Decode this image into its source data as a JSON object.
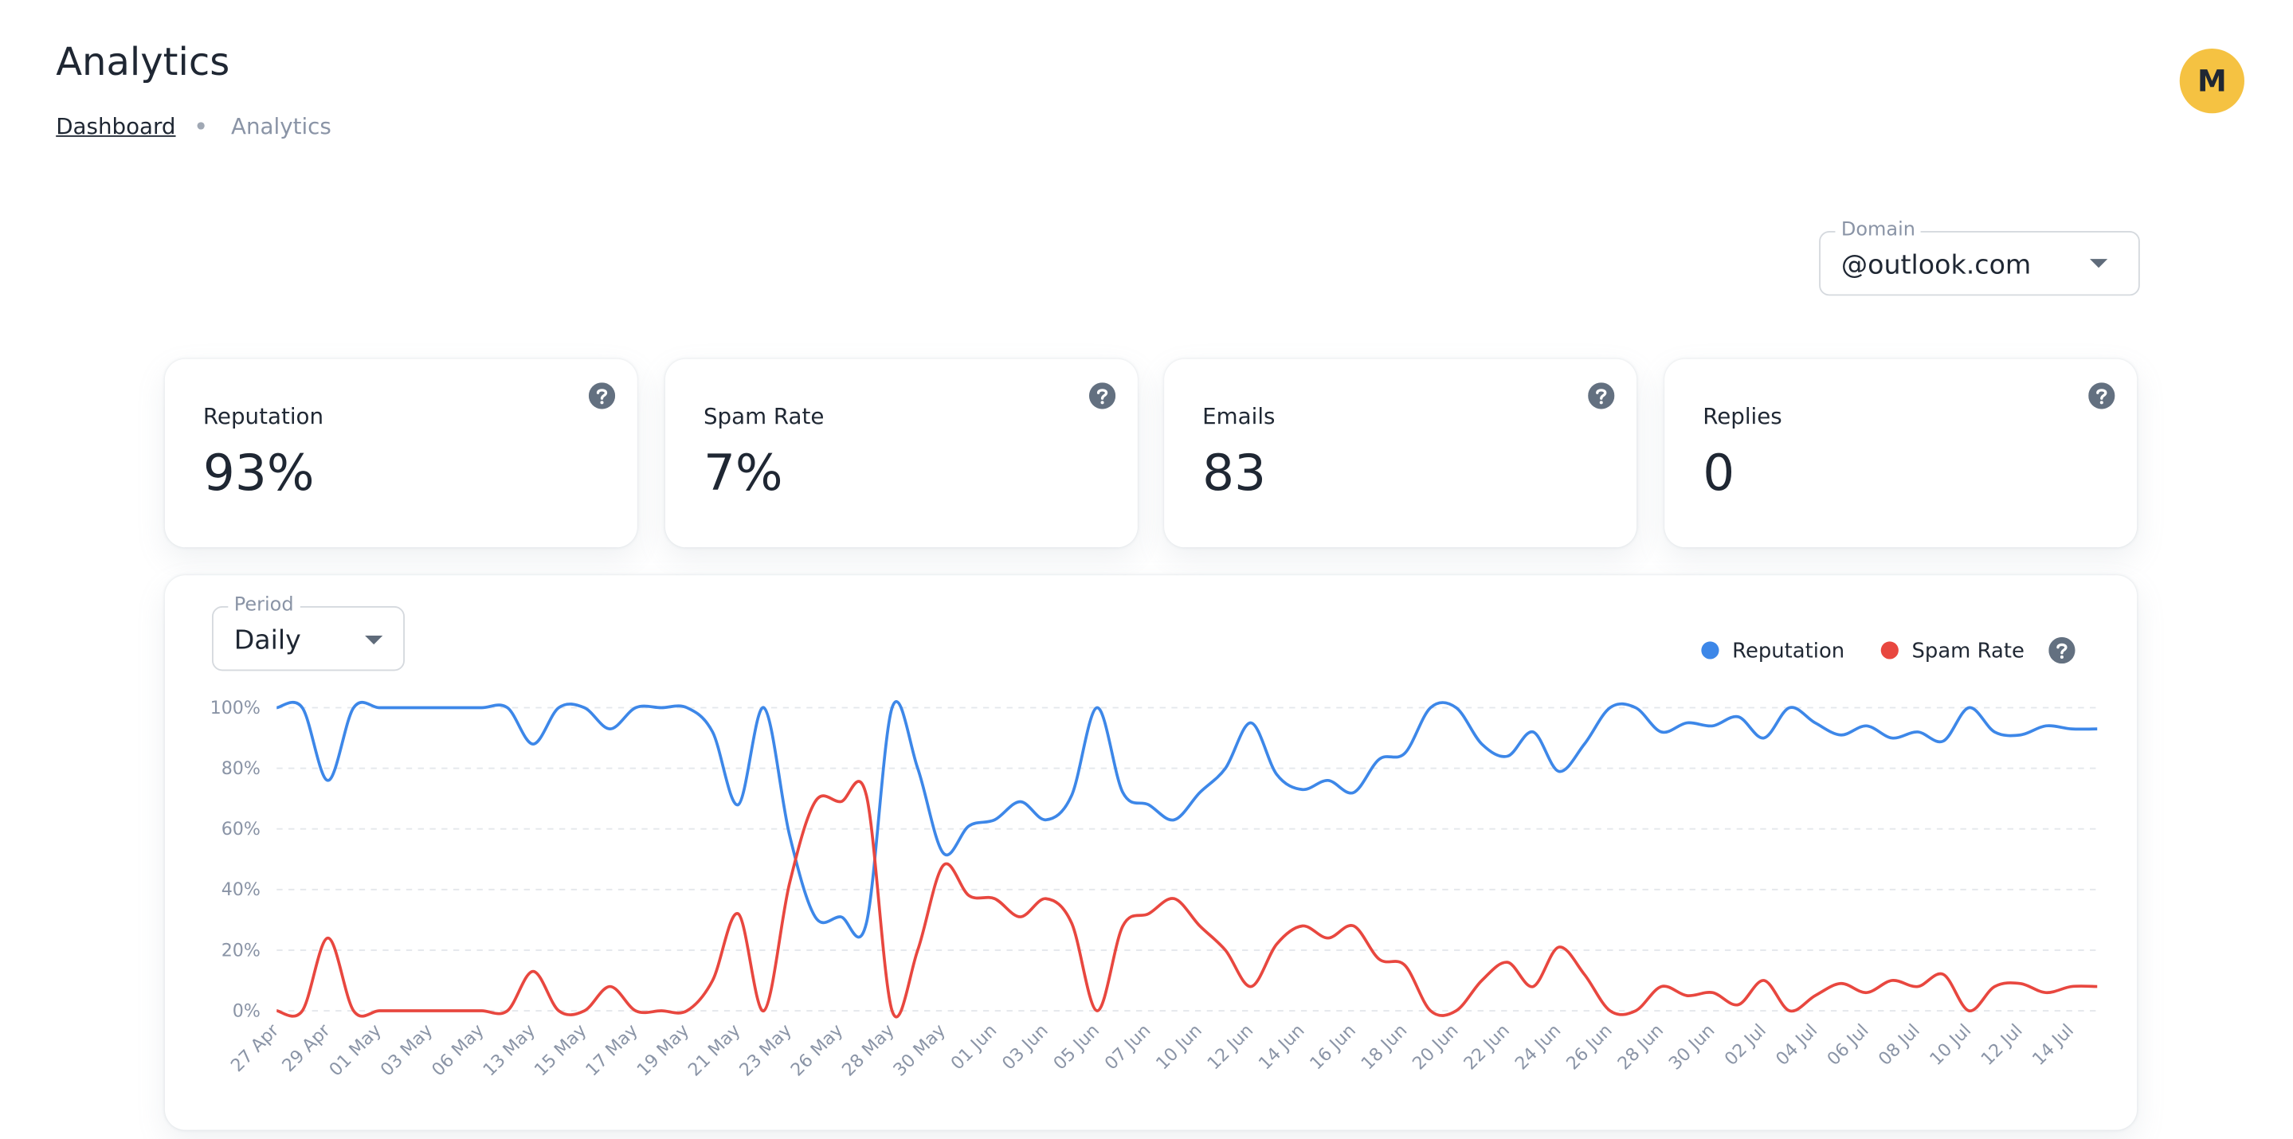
{
  "header": {
    "title": "Analytics",
    "avatar": "M",
    "breadcrumb": [
      "Dashboard",
      "Analytics"
    ]
  },
  "domain_select": {
    "label": "Domain",
    "value": "@outlook.com"
  },
  "stats": [
    {
      "label": "Reputation",
      "value": "93%"
    },
    {
      "label": "Spam Rate",
      "value": "7%"
    },
    {
      "label": "Emails",
      "value": "83"
    },
    {
      "label": "Replies",
      "value": "0"
    }
  ],
  "period_select": {
    "label": "Period",
    "value": "Daily"
  },
  "chart_data": {
    "type": "line",
    "categories": [
      "27 Apr",
      null,
      "29 Apr",
      null,
      "01 May",
      null,
      "03 May",
      null,
      "06 May",
      null,
      "13 May",
      null,
      "15 May",
      null,
      "17 May",
      null,
      "19 May",
      null,
      "21 May",
      null,
      "23 May",
      null,
      "26 May",
      null,
      "28 May",
      null,
      "30 May",
      null,
      "01 Jun",
      null,
      "03 Jun",
      null,
      "05 Jun",
      null,
      "07 Jun",
      null,
      "10 Jun",
      null,
      "12 Jun",
      null,
      "14 Jun",
      null,
      "16 Jun",
      null,
      "18 Jun",
      null,
      "20 Jun",
      null,
      "22 Jun",
      null,
      "24 Jun",
      null,
      "26 Jun",
      null,
      "28 Jun",
      null,
      "30 Jun",
      null,
      "02 Jul",
      null,
      "04 Jul",
      null,
      "06 Jul",
      null,
      "08 Jul",
      null,
      "10 Jul",
      null,
      "12 Jul",
      null,
      "14 Jul",
      null
    ],
    "series": [
      {
        "name": "Reputation",
        "color": "#3d87e8",
        "values": [
          100,
          100,
          76,
          100,
          100,
          100,
          100,
          100,
          100,
          100,
          88,
          100,
          100,
          93,
          100,
          100,
          100,
          92,
          68,
          100,
          58,
          31,
          31,
          29,
          100,
          80,
          52,
          61,
          63,
          69,
          63,
          71,
          100,
          72,
          68,
          63,
          72,
          80,
          95,
          78,
          73,
          76,
          72,
          83,
          85,
          100,
          100,
          88,
          84,
          92,
          79,
          88,
          100,
          100,
          92,
          95,
          94,
          97,
          90,
          100,
          95,
          91,
          94,
          90,
          92,
          89,
          100,
          92,
          91,
          94,
          93,
          93
        ]
      },
      {
        "name": "Spam Rate",
        "color": "#e8473f",
        "values": [
          0,
          0,
          24,
          0,
          0,
          0,
          0,
          0,
          0,
          0,
          13,
          0,
          0,
          8,
          0,
          0,
          0,
          10,
          32,
          0,
          42,
          69,
          69,
          71,
          0,
          20,
          48,
          38,
          37,
          31,
          37,
          29,
          0,
          28,
          32,
          37,
          28,
          20,
          8,
          22,
          28,
          24,
          28,
          17,
          15,
          0,
          0,
          10,
          16,
          8,
          21,
          12,
          0,
          0,
          8,
          5,
          6,
          2,
          10,
          0,
          5,
          9,
          6,
          10,
          8,
          12,
          0,
          8,
          9,
          6,
          8,
          8
        ]
      }
    ],
    "ylim": [
      0,
      100
    ],
    "yticks": [
      {
        "value": 0,
        "label": "0%"
      },
      {
        "value": 20,
        "label": "20%"
      },
      {
        "value": 40,
        "label": "40%"
      },
      {
        "value": 60,
        "label": "60%"
      },
      {
        "value": 80,
        "label": "80%"
      },
      {
        "value": 100,
        "label": "100%"
      }
    ],
    "grid": true
  }
}
